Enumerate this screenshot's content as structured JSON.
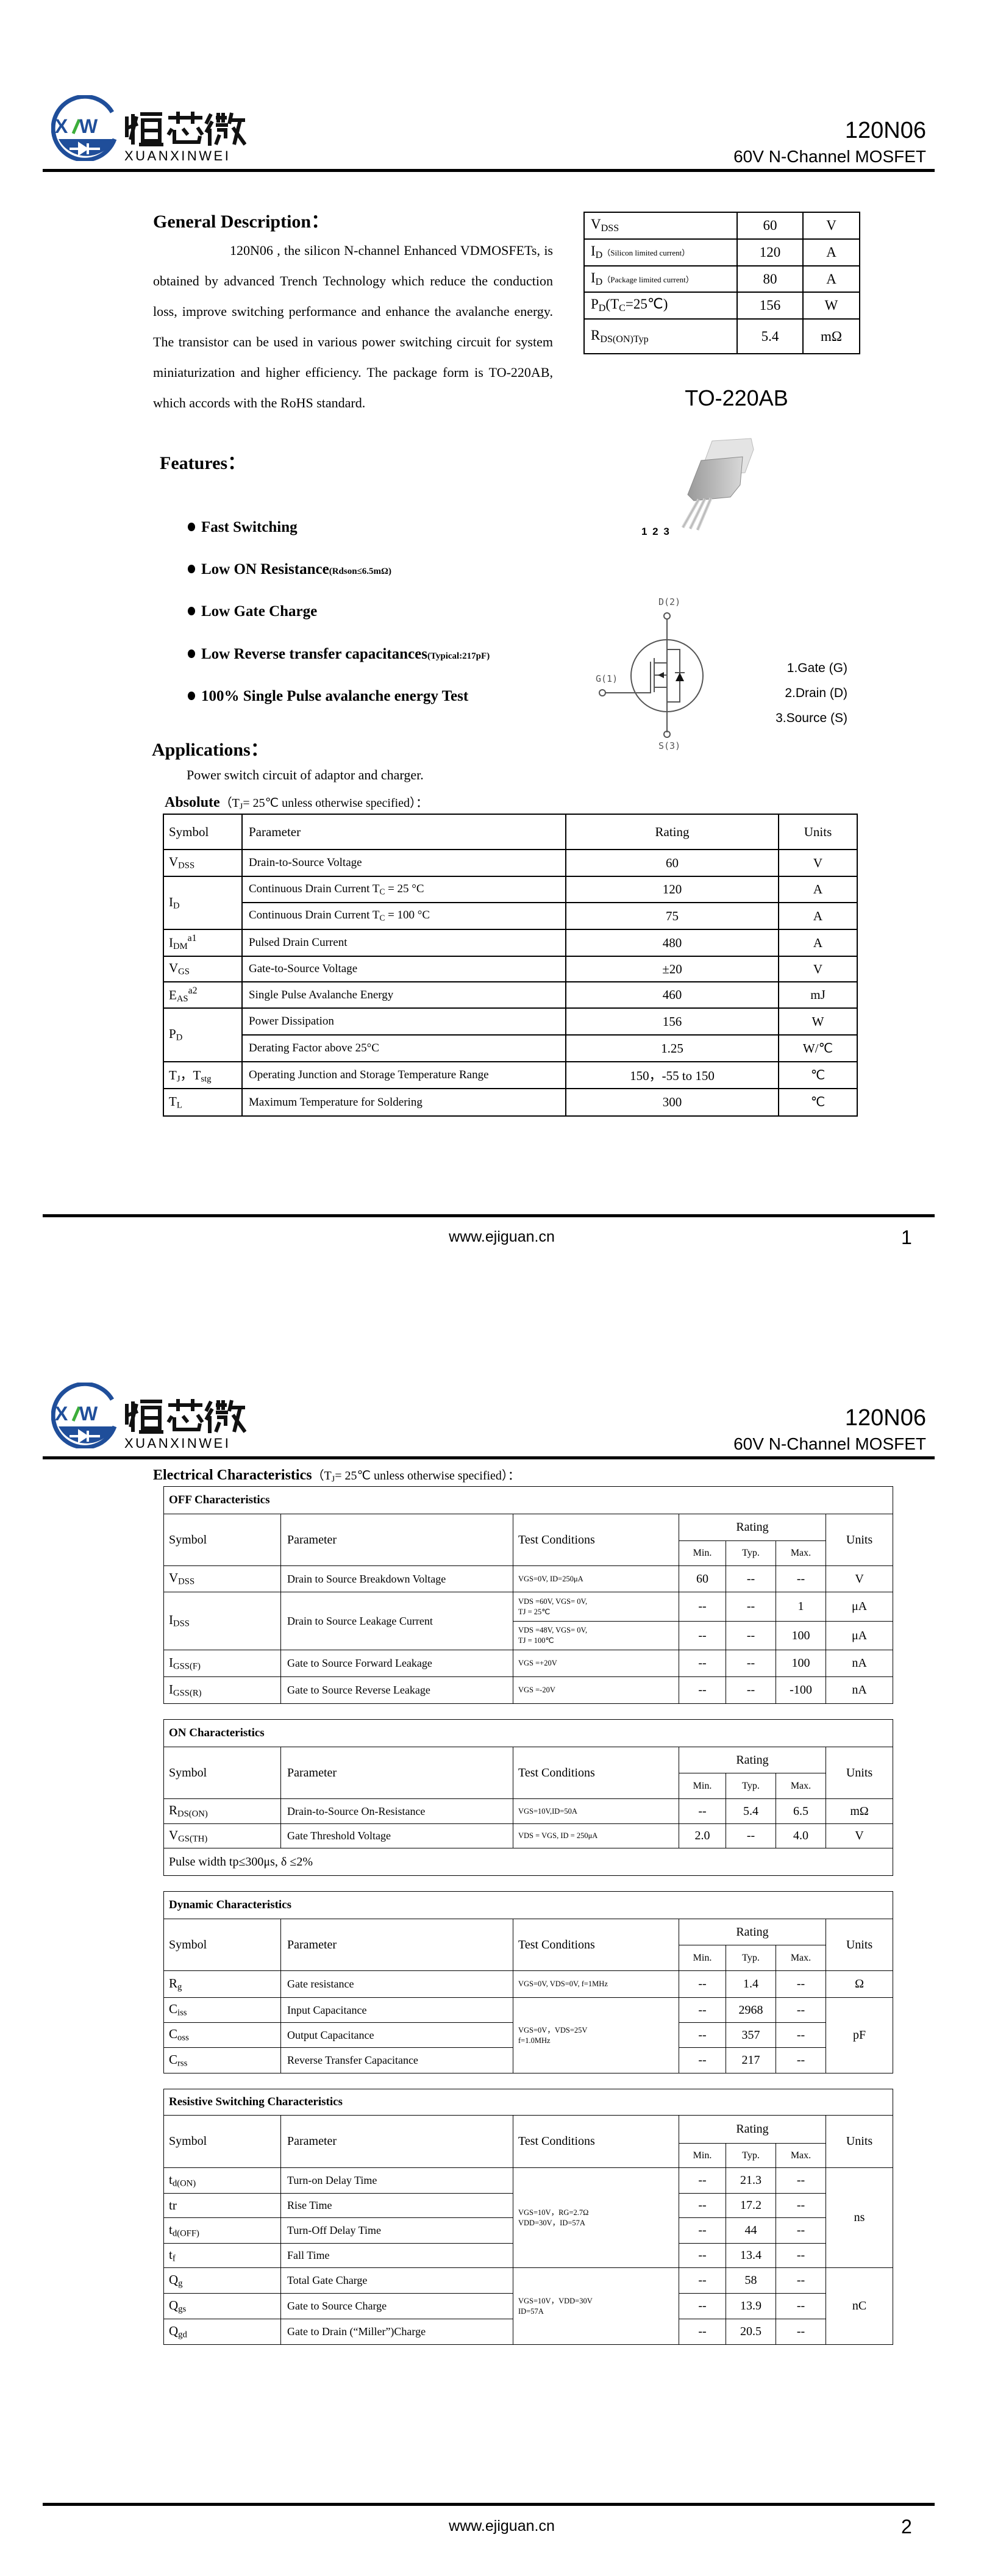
{
  "header": {
    "logo": {
      "name_cn": "烜芯微",
      "mark": "XW",
      "brand": "XUANXINWEI",
      "blue": "#1f4e9a",
      "green": "#3cae3a"
    },
    "part_number": "120N06",
    "subtitle": "60V N-Channel MOSFET"
  },
  "footer": {
    "url": "www.ejiguan.cn",
    "pages": [
      "1",
      "2"
    ]
  },
  "page1": {
    "description": {
      "title": "General Description：",
      "text": "120N06 , the silicon N-channel Enhanced VDMOSFETs, is obtained by advanced Trench Technology which reduce the conduction loss, improve switching performance and enhance the avalanche energy. The transistor can be used in various power switching circuit for system miniaturization and higher efficiency. The package form is TO-220AB, which accords with the RoHS standard."
    },
    "summary_table": [
      [
        {
          "p": [
            [
              "V",
              "DSS"
            ]
          ]
        },
        "60",
        "V"
      ],
      [
        {
          "p": [
            [
              "I",
              "D"
            ]
          ],
          "note": "（Silicon limited current）"
        },
        "120",
        "A"
      ],
      [
        {
          "p": [
            [
              "I",
              "D"
            ]
          ],
          "note": "（Package limited current）"
        },
        "80",
        "A"
      ],
      [
        {
          "p": [
            [
              "P",
              "D"
            ],
            [
              "(T",
              "C"
            ],
            [
              "=25℃)",
              ""
            ]
          ]
        },
        "156",
        "W"
      ],
      [
        {
          "p": [
            [
              "R",
              "DS(ON)Typ"
            ]
          ]
        },
        "5.4",
        "mΩ"
      ]
    ],
    "package": {
      "name": "TO-220AB",
      "pins": "1 2 3"
    },
    "features": {
      "title": "Features：",
      "items": [
        {
          "text": "Fast Switching",
          "note": ""
        },
        {
          "text": "Low ON Resistance",
          "note": "(Rdson≤6.5mΩ)"
        },
        {
          "text": "Low Gate Charge",
          "note": ""
        },
        {
          "text": "Low Reverse transfer capacitances",
          "note": "(Typical:217pF)"
        },
        {
          "text": "100% Single Pulse avalanche energy Test",
          "note": ""
        }
      ]
    },
    "schematic": {
      "drain": "D(2)",
      "gate": "G(1)",
      "source": "S(3)"
    },
    "pin_legend": [
      "1.Gate (G)",
      "2.Drain (D)",
      "3.Source (S)"
    ],
    "applications": {
      "title": "Applications：",
      "text": "Power switch circuit of adaptor and charger."
    },
    "absolute": {
      "title": "Absolute",
      "condition": [
        [
          "（T",
          "J"
        ],
        [
          "= 25℃  unless otherwise specified）：",
          ""
        ]
      ],
      "headers": [
        "Symbol",
        "Parameter",
        "Rating",
        "Units"
      ],
      "rows": [
        [
          {
            "p": [
              [
                "V",
                "DSS"
              ]
            ]
          },
          "Drain-to-Source Voltage",
          "60",
          "V"
        ],
        [
          {
            "p": [
              [
                "I",
                "D"
              ]
            ],
            "rs": 2
          },
          {
            "p": [
              [
                "Continuous Drain Current T",
                "C"
              ],
              [
                " = 25 °C",
                ""
              ]
            ]
          },
          "120",
          "A"
        ],
        [
          {
            "p": [
              [
                "Continuous Drain Current T",
                "C"
              ],
              [
                " = 100 °C",
                ""
              ]
            ]
          },
          "75",
          "A"
        ],
        [
          {
            "p": [
              [
                "I",
                "DM"
              ]
            ],
            "sup": "a1"
          },
          "Pulsed Drain Current",
          "480",
          "A"
        ],
        [
          {
            "p": [
              [
                "V",
                "GS"
              ]
            ]
          },
          "Gate-to-Source Voltage",
          "±20",
          "V"
        ],
        [
          {
            "p": [
              [
                "E",
                "AS"
              ]
            ],
            "sup": "a2"
          },
          "Single Pulse Avalanche Energy",
          "460",
          "mJ"
        ],
        [
          {
            "p": [
              [
                "P",
                "D"
              ]
            ],
            "rs": 2
          },
          "Power Dissipation",
          "156",
          "W"
        ],
        [
          "Derating Factor above 25°C",
          "1.25",
          "W/℃"
        ],
        [
          {
            "p": [
              [
                "T",
                "J"
              ],
              [
                "，T",
                "stg"
              ]
            ]
          },
          "Operating Junction and Storage Temperature Range",
          "150，-55 to 150",
          "℃"
        ],
        [
          {
            "p": [
              [
                "T",
                "L"
              ]
            ]
          },
          "Maximum Temperature for Soldering",
          "300",
          "℃"
        ]
      ]
    }
  },
  "page2": {
    "title": "Electrical Characteristics",
    "condition": [
      [
        "（T",
        "J"
      ],
      [
        "= 25℃  unless otherwise specified）：",
        ""
      ]
    ],
    "headers": {
      "symbol": "Symbol",
      "parameter": "Parameter",
      "test": "Test Conditions",
      "rating": "Rating",
      "min": "Min.",
      "typ": "Typ.",
      "max": "Max.",
      "units": "Units"
    },
    "tables": [
      {
        "title": "OFF Characteristics",
        "rows": [
          [
            {
              "p": [
                [
                  "V",
                  "DSS"
                ]
              ]
            },
            "Drain to Source Breakdown Voltage",
            "VGS=0V, ID=250μA",
            "60",
            "--",
            "--",
            "V"
          ],
          [
            {
              "p": [
                [
                  "I",
                  "DSS"
                ]
              ],
              "rs": 2
            },
            {
              "v": "Drain to Source Leakage Current",
              "rs": 2
            },
            "VDS =60V, VGS= 0V,\nTJ = 25℃",
            "--",
            "--",
            "1",
            "μA"
          ],
          [
            "VDS =48V, VGS= 0V,\nTJ = 100℃",
            "--",
            "--",
            "100",
            "μA"
          ],
          [
            {
              "p": [
                [
                  "I",
                  "GSS(F)"
                ]
              ]
            },
            "Gate to Source Forward Leakage",
            "VGS =+20V",
            "--",
            "--",
            "100",
            "nA"
          ],
          [
            {
              "p": [
                [
                  "I",
                  "GSS(R)"
                ]
              ]
            },
            "Gate to Source Reverse Leakage",
            "VGS =-20V",
            "--",
            "--",
            "-100",
            "nA"
          ]
        ]
      },
      {
        "title": "ON Characteristics",
        "rows": [
          [
            {
              "p": [
                [
                  "R",
                  "DS(ON)"
                ]
              ]
            },
            "Drain-to-Source On-Resistance",
            "VGS=10V,ID=50A",
            "--",
            "5.4",
            "6.5",
            "mΩ"
          ],
          [
            {
              "p": [
                [
                  "V",
                  "GS(TH)"
                ]
              ]
            },
            "Gate Threshold Voltage",
            "VDS = VGS, ID = 250μA",
            "2.0",
            "--",
            "4.0",
            "V"
          ]
        ],
        "note": "Pulse width tp≤300μs, δ ≤2%"
      },
      {
        "title": "Dynamic Characteristics",
        "rows": [
          [
            {
              "p": [
                [
                  "R",
                  "g"
                ]
              ]
            },
            "Gate resistance",
            "VGS=0V, VDS=0V, f=1MHz",
            "--",
            "1.4",
            "--",
            "Ω"
          ],
          [
            {
              "p": [
                [
                  "C",
                  "iss"
                ]
              ]
            },
            "Input Capacitance",
            {
              "v": "VGS=0V，VDS=25V\nf=1.0MHz",
              "rs": 3
            },
            "--",
            "2968",
            "--",
            {
              "v": "pF",
              "rs": 3
            }
          ],
          [
            {
              "p": [
                [
                  "C",
                  "oss"
                ]
              ]
            },
            "Output Capacitance",
            "--",
            "357",
            "--"
          ],
          [
            {
              "p": [
                [
                  "C",
                  "rss"
                ]
              ]
            },
            "Reverse Transfer Capacitance",
            "--",
            "217",
            "--"
          ]
        ]
      },
      {
        "title": "Resistive Switching Characteristics",
        "rows": [
          [
            {
              "p": [
                [
                  "t",
                  "d(ON)"
                ]
              ]
            },
            "Turn-on Delay Time",
            {
              "v": "VGS=10V，RG=2.7Ω\nVDD=30V，ID=57A",
              "rs": 4
            },
            "--",
            "21.3",
            "--",
            {
              "v": "ns",
              "rs": 4
            }
          ],
          [
            "tr",
            "Rise Time",
            "--",
            "17.2",
            "--"
          ],
          [
            {
              "p": [
                [
                  "t",
                  "d(OFF)"
                ]
              ]
            },
            "Turn-Off Delay Time",
            "--",
            "44",
            "--"
          ],
          [
            {
              "p": [
                [
                  "t",
                  "f"
                ]
              ]
            },
            "Fall Time",
            "--",
            "13.4",
            "--"
          ],
          [
            {
              "p": [
                [
                  "Q",
                  "g"
                ]
              ]
            },
            "Total Gate Charge",
            {
              "v": "VGS=10V，VDD=30V\nID=57A",
              "rs": 3
            },
            "--",
            "58",
            "--",
            {
              "v": "nC",
              "rs": 3
            }
          ],
          [
            {
              "p": [
                [
                  "Q",
                  "gs"
                ]
              ]
            },
            "Gate to Source Charge",
            "--",
            "13.9",
            "--"
          ],
          [
            {
              "p": [
                [
                  "Q",
                  "gd"
                ]
              ]
            },
            "Gate to Drain (“Miller”)Charge",
            "--",
            "20.5",
            "--"
          ]
        ]
      }
    ]
  }
}
